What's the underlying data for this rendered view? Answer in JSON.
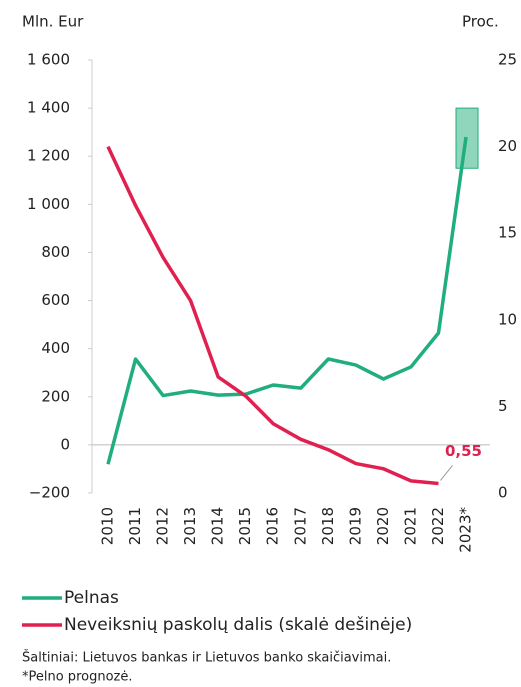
{
  "chart_data": {
    "type": "line",
    "y_label": "Mln. Eur",
    "y2_label": "Proc.",
    "x": [
      "2010",
      "2011",
      "2012",
      "2013",
      "2014",
      "2015",
      "2016",
      "2017",
      "2018",
      "2019",
      "2020",
      "2021",
      "2022",
      "2023*"
    ],
    "series": [
      {
        "name": "Pelnas",
        "color": "#1fae7c",
        "axis": "y",
        "values": [
          -80,
          357,
          205,
          224,
          207,
          211,
          249,
          236,
          357,
          332,
          274,
          324,
          465,
          1280
        ],
        "range": [
          1150,
          1400
        ]
      },
      {
        "name": "Neveiksnių paskolų dalis (skalė dešinėje)",
        "color": "#e0204f",
        "axis": "y2",
        "values": [
          20.0,
          16.6,
          13.6,
          11.1,
          6.7,
          5.6,
          4.0,
          3.1,
          2.5,
          1.7,
          1.4,
          0.7,
          0.55,
          null
        ],
        "value_labels": [
          null,
          null,
          null,
          null,
          null,
          null,
          null,
          null,
          null,
          null,
          null,
          null,
          "0,55",
          null
        ]
      }
    ],
    "ylim": [
      -200,
      1600
    ],
    "yticks": [
      {
        "value": -200,
        "label": "−200"
      },
      0,
      200,
      400,
      600,
      800,
      {
        "value": 1000,
        "label": "1 000"
      },
      {
        "value": 1200,
        "label": "1 200"
      },
      {
        "value": 1400,
        "label": "1 400"
      },
      {
        "value": 1600,
        "label": "1 600"
      }
    ],
    "y2lim": [
      0,
      25
    ],
    "y2ticks": [
      0,
      5,
      10,
      15,
      20,
      25
    ],
    "source": "Šaltiniai: Lietuvos bankas ir Lietuvos banko skaičiavimai.",
    "note": "*Pelno prognozė."
  }
}
